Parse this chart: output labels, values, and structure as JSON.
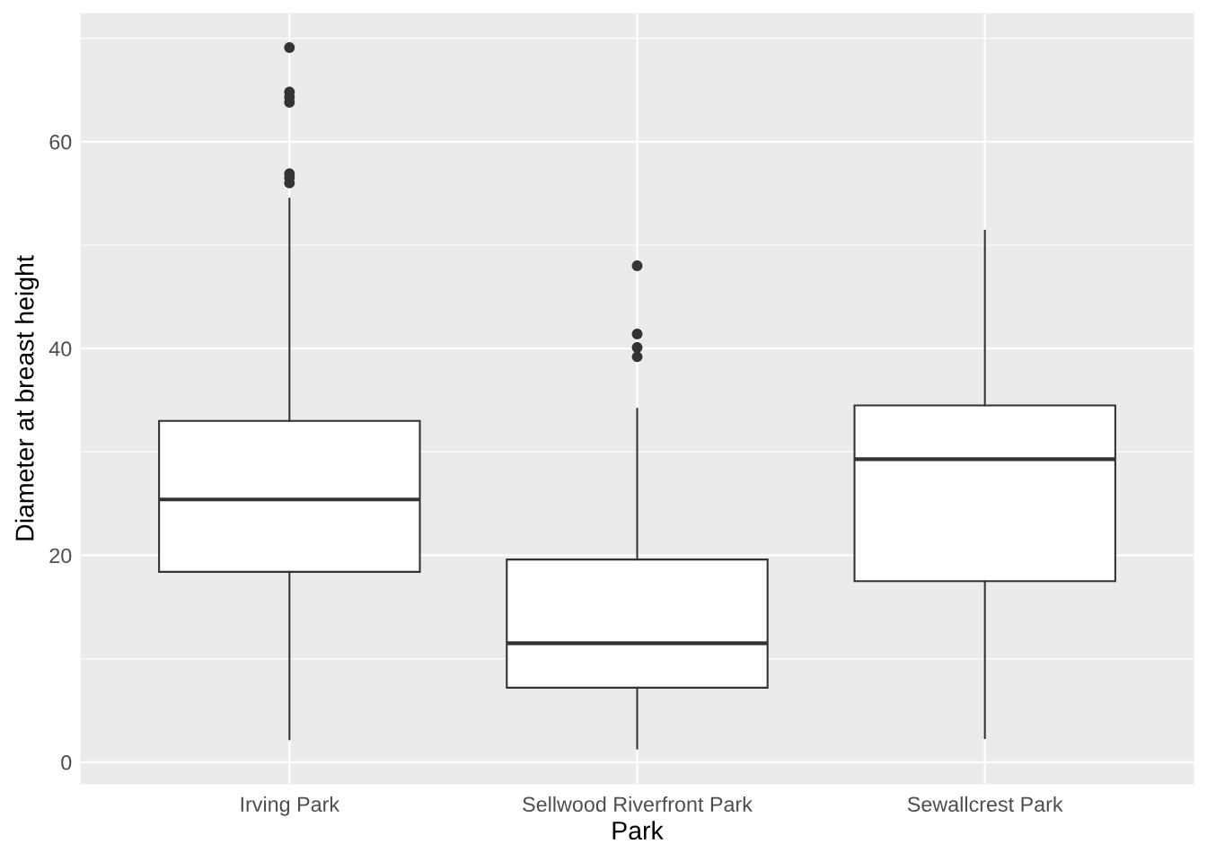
{
  "chart_data": {
    "type": "box",
    "xlabel": "Park",
    "ylabel": "Diameter at breast height",
    "categories": [
      "Irving Park",
      "Sellwood Riverfront Park",
      "Sewallcrest Park"
    ],
    "boxes": [
      {
        "low": 2.2,
        "q1": 18.4,
        "median": 25.4,
        "q3": 33.0,
        "high": 54.5,
        "outliers": [
          69.1,
          64.8,
          64.3,
          63.8,
          56.9,
          56.5,
          56.0
        ]
      },
      {
        "low": 1.3,
        "q1": 7.2,
        "median": 11.5,
        "q3": 19.6,
        "high": 34.2,
        "outliers": [
          48.0,
          41.4,
          40.1,
          39.2
        ]
      },
      {
        "low": 2.3,
        "q1": 17.5,
        "median": 29.3,
        "q3": 34.5,
        "high": 51.4
      }
    ],
    "ylim": [
      -2.1,
      72.4
    ],
    "yticks": [
      0,
      20,
      40,
      60
    ],
    "grid": true
  }
}
